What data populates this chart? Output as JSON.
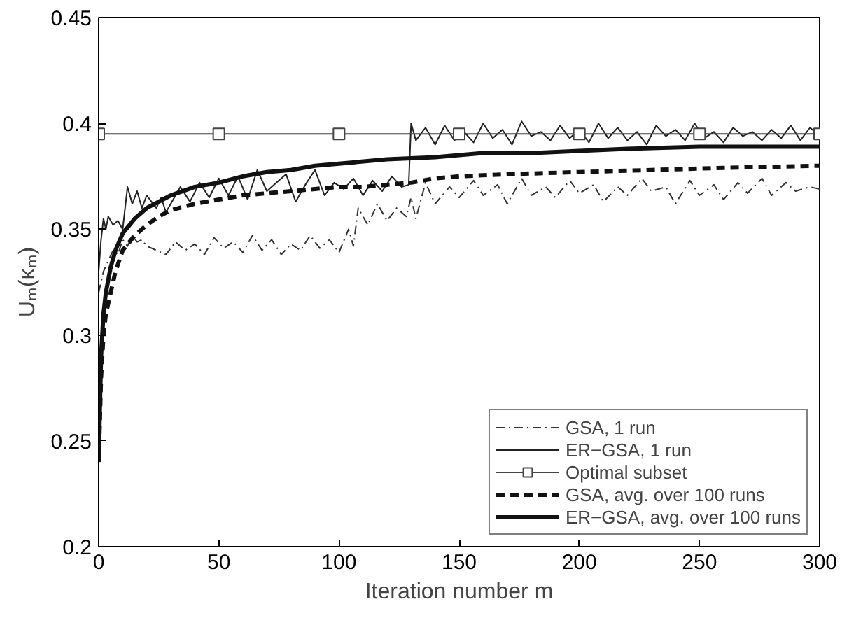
{
  "chart_data": {
    "type": "line",
    "xlabel": "Iteration number m",
    "ylabel": "Uₘ(κₘ)",
    "xlim": [
      0,
      300
    ],
    "ylim": [
      0.2,
      0.45
    ],
    "xticks": [
      0,
      50,
      100,
      150,
      200,
      250,
      300
    ],
    "yticks": [
      0.2,
      0.25,
      0.3,
      0.35,
      0.4,
      0.45
    ],
    "grid": false,
    "legend": "bottom right",
    "marker": "none",
    "series": [
      {
        "name": "GSA, 1 run",
        "color": "#333333",
        "line_style": "dashdot",
        "x": [
          0,
          1,
          2,
          4,
          6,
          8,
          10,
          12,
          14,
          16,
          18,
          20,
          24,
          28,
          32,
          36,
          40,
          44,
          48,
          52,
          56,
          60,
          64,
          68,
          72,
          76,
          80,
          84,
          88,
          92,
          96,
          100,
          104,
          106,
          108,
          112,
          116,
          120,
          124,
          128,
          130,
          132,
          136,
          140,
          146,
          150,
          156,
          160,
          166,
          170,
          176,
          180,
          186,
          190,
          196,
          200,
          206,
          210,
          216,
          220,
          226,
          230,
          236,
          240,
          246,
          250,
          256,
          260,
          266,
          270,
          276,
          280,
          286,
          290,
          296,
          300
        ],
        "values": [
          0.32,
          0.325,
          0.33,
          0.335,
          0.34,
          0.338,
          0.345,
          0.342,
          0.347,
          0.344,
          0.345,
          0.342,
          0.34,
          0.338,
          0.344,
          0.34,
          0.343,
          0.338,
          0.346,
          0.341,
          0.344,
          0.339,
          0.347,
          0.34,
          0.345,
          0.338,
          0.343,
          0.34,
          0.347,
          0.341,
          0.345,
          0.339,
          0.35,
          0.342,
          0.36,
          0.352,
          0.362,
          0.354,
          0.36,
          0.356,
          0.365,
          0.355,
          0.372,
          0.362,
          0.37,
          0.365,
          0.373,
          0.366,
          0.371,
          0.362,
          0.374,
          0.366,
          0.37,
          0.365,
          0.373,
          0.367,
          0.371,
          0.363,
          0.37,
          0.366,
          0.374,
          0.368,
          0.37,
          0.362,
          0.373,
          0.366,
          0.371,
          0.364,
          0.372,
          0.367,
          0.374,
          0.366,
          0.372,
          0.368,
          0.37,
          0.369
        ]
      },
      {
        "name": "ER−GSA, 1 run",
        "color": "#222222",
        "line_style": "solid",
        "x": [
          0,
          1,
          2,
          3,
          4,
          6,
          8,
          10,
          12,
          14,
          16,
          18,
          20,
          22,
          24,
          26,
          28,
          30,
          34,
          38,
          42,
          46,
          50,
          54,
          58,
          62,
          66,
          70,
          74,
          78,
          82,
          86,
          90,
          94,
          98,
          102,
          106,
          110,
          114,
          118,
          122,
          126,
          129,
          130,
          132,
          136,
          140,
          144,
          148,
          152,
          156,
          160,
          164,
          168,
          172,
          176,
          180,
          184,
          188,
          192,
          196,
          200,
          204,
          208,
          212,
          216,
          220,
          224,
          228,
          232,
          236,
          240,
          244,
          248,
          252,
          256,
          260,
          264,
          268,
          272,
          276,
          280,
          284,
          288,
          292,
          296,
          300
        ],
        "values": [
          0.33,
          0.345,
          0.355,
          0.35,
          0.356,
          0.352,
          0.354,
          0.35,
          0.37,
          0.362,
          0.368,
          0.36,
          0.366,
          0.363,
          0.36,
          0.365,
          0.358,
          0.362,
          0.37,
          0.363,
          0.372,
          0.365,
          0.374,
          0.366,
          0.375,
          0.364,
          0.378,
          0.368,
          0.372,
          0.376,
          0.363,
          0.371,
          0.378,
          0.366,
          0.372,
          0.369,
          0.374,
          0.366,
          0.373,
          0.368,
          0.375,
          0.37,
          0.371,
          0.4,
          0.392,
          0.398,
          0.39,
          0.399,
          0.392,
          0.396,
          0.391,
          0.4,
          0.393,
          0.397,
          0.39,
          0.401,
          0.394,
          0.396,
          0.392,
          0.399,
          0.393,
          0.397,
          0.391,
          0.4,
          0.393,
          0.398,
          0.392,
          0.396,
          0.39,
          0.399,
          0.394,
          0.397,
          0.392,
          0.4,
          0.393,
          0.396,
          0.391,
          0.398,
          0.394,
          0.396,
          0.392,
          0.397,
          0.393,
          0.399,
          0.392,
          0.398,
          0.394
        ]
      },
      {
        "name": "Optimal subset",
        "color": "#444444",
        "line_style": "solid",
        "marker": "square",
        "x": [
          0,
          50,
          100,
          150,
          200,
          250,
          300
        ],
        "values": [
          0.395,
          0.395,
          0.395,
          0.395,
          0.395,
          0.395,
          0.395
        ]
      },
      {
        "name": "GSA, avg. over 100 runs",
        "color": "#111111",
        "line_style": "dashed",
        "x": [
          0,
          1,
          2,
          3,
          5,
          7,
          10,
          15,
          20,
          25,
          30,
          40,
          50,
          60,
          70,
          80,
          90,
          100,
          110,
          120,
          130,
          140,
          150,
          170,
          200,
          230,
          260,
          300
        ],
        "values": [
          0.24,
          0.28,
          0.3,
          0.31,
          0.32,
          0.33,
          0.34,
          0.347,
          0.352,
          0.356,
          0.359,
          0.362,
          0.364,
          0.366,
          0.367,
          0.368,
          0.369,
          0.37,
          0.37,
          0.371,
          0.372,
          0.374,
          0.375,
          0.376,
          0.377,
          0.378,
          0.379,
          0.38
        ]
      },
      {
        "name": "ER−GSA, avg. over 100 runs",
        "color": "#111111",
        "line_style": "solid",
        "x": [
          0,
          1,
          2,
          3,
          5,
          7,
          10,
          15,
          20,
          25,
          30,
          40,
          50,
          60,
          70,
          80,
          90,
          100,
          120,
          140,
          160,
          180,
          200,
          220,
          250,
          280,
          300
        ],
        "values": [
          0.24,
          0.29,
          0.31,
          0.32,
          0.332,
          0.34,
          0.348,
          0.355,
          0.36,
          0.363,
          0.366,
          0.37,
          0.372,
          0.375,
          0.377,
          0.378,
          0.38,
          0.381,
          0.383,
          0.384,
          0.386,
          0.386,
          0.387,
          0.388,
          0.389,
          0.389,
          0.389
        ]
      }
    ]
  }
}
